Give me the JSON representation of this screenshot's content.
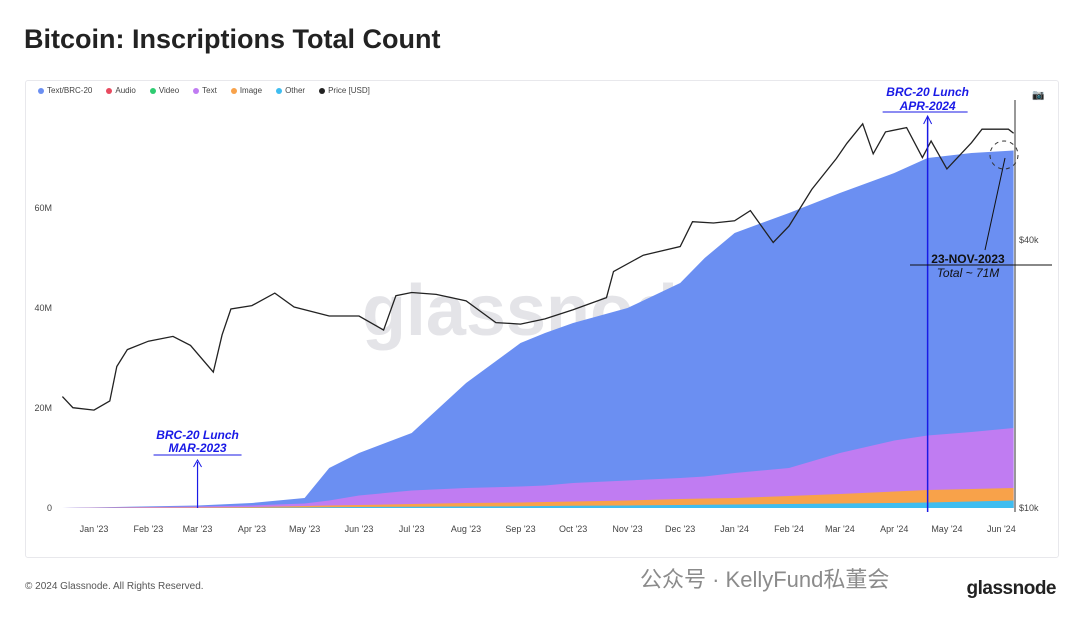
{
  "title": "Bitcoin: Inscriptions Total Count",
  "footer": "© 2024 Glassnode. All Rights Reserved.",
  "logo": "glassnode",
  "watermark_overlay": "公众号 · KellyFund私董会",
  "camera_icon": "camera-icon",
  "chart_data": {
    "type": "area",
    "title": "Bitcoin: Inscriptions Total Count",
    "stacked": true,
    "watermark": "glassnode",
    "legend_placement": "top-left",
    "legend": [
      {
        "name": "Text/BRC-20",
        "color": "#6b8ff2"
      },
      {
        "name": "Audio",
        "color": "#e84a5f"
      },
      {
        "name": "Video",
        "color": "#2ecc71"
      },
      {
        "name": "Text",
        "color": "#c07cf2"
      },
      {
        "name": "Image",
        "color": "#f8a24a"
      },
      {
        "name": "Other",
        "color": "#3fbdf0"
      },
      {
        "name": "Price [USD]",
        "color": "#222222"
      }
    ],
    "x_ticks": [
      "Jan '23",
      "Feb '23",
      "Mar '23",
      "Apr '23",
      "May '23",
      "Jun '23",
      "Jul '23",
      "Aug '23",
      "Sep '23",
      "Oct '23",
      "Nov '23",
      "Dec '23",
      "Jan '24",
      "Feb '24",
      "Mar '24",
      "Apr '24",
      "May '24",
      "Jun '24"
    ],
    "y_left": {
      "ticks": [
        "0",
        "20M",
        "40M",
        "60M"
      ],
      "range": [
        0,
        80000000
      ]
    },
    "y_right": {
      "ticks": [
        "$10k",
        "$40k"
      ],
      "scale": "log",
      "range": [
        10000,
        100000
      ]
    },
    "dates": [
      "2022-12-14",
      "2023-03-01",
      "2023-04-01",
      "2023-05-01",
      "2023-05-15",
      "2023-06-01",
      "2023-07-01",
      "2023-08-01",
      "2023-09-01",
      "2023-09-15",
      "2023-10-01",
      "2023-11-01",
      "2023-12-01",
      "2023-12-15",
      "2024-01-01",
      "2024-02-01",
      "2024-03-01",
      "2024-04-01",
      "2024-04-20",
      "2024-05-15",
      "2024-06-08"
    ],
    "series": [
      {
        "name": "Other",
        "cumulative": [
          0,
          0,
          0.05,
          0.1,
          0.15,
          0.2,
          0.25,
          0.3,
          0.35,
          0.4,
          0.45,
          0.5,
          0.6,
          0.65,
          0.7,
          0.8,
          0.9,
          1.0,
          1.1,
          1.3,
          1.5
        ]
      },
      {
        "name": "Image",
        "cumulative": [
          0,
          0.1,
          0.2,
          0.4,
          0.5,
          0.6,
          0.8,
          1.0,
          1.1,
          1.2,
          1.3,
          1.5,
          1.8,
          1.9,
          2.0,
          2.4,
          2.8,
          3.3,
          3.6,
          3.8,
          4.0
        ]
      },
      {
        "name": "Text",
        "cumulative": [
          0,
          0.3,
          0.5,
          0.9,
          1.5,
          2.5,
          3.5,
          4.0,
          4.3,
          4.5,
          5.0,
          5.5,
          6.0,
          6.3,
          7.0,
          8.0,
          11.0,
          13.5,
          14.5,
          15.2,
          16.0
        ]
      },
      {
        "name": "Text/BRC-20",
        "cumulative": [
          0,
          0.5,
          1.0,
          2.0,
          8.0,
          11.0,
          15.0,
          25.0,
          33.0,
          35.0,
          37.0,
          40.0,
          45.0,
          50.0,
          55.0,
          59.0,
          63.0,
          67.0,
          70.0,
          71.0,
          71.5
        ]
      }
    ],
    "units": "millions",
    "price": {
      "dates": [
        "2022-12-14",
        "2022-12-20",
        "2023-01-01",
        "2023-01-10",
        "2023-01-14",
        "2023-01-20",
        "2023-02-01",
        "2023-02-15",
        "2023-02-25",
        "2023-03-10",
        "2023-03-15",
        "2023-03-20",
        "2023-04-01",
        "2023-04-14",
        "2023-04-25",
        "2023-05-15",
        "2023-06-01",
        "2023-06-15",
        "2023-06-22",
        "2023-07-01",
        "2023-07-15",
        "2023-08-01",
        "2023-08-18",
        "2023-09-01",
        "2023-09-15",
        "2023-10-01",
        "2023-10-20",
        "2023-10-24",
        "2023-11-10",
        "2023-12-01",
        "2023-12-08",
        "2023-12-20",
        "2024-01-01",
        "2024-01-10",
        "2024-01-23",
        "2024-02-01",
        "2024-02-14",
        "2024-02-28",
        "2024-03-05",
        "2024-03-14",
        "2024-03-20",
        "2024-03-27",
        "2024-04-08",
        "2024-04-17",
        "2024-04-22",
        "2024-05-01",
        "2024-05-15",
        "2024-05-21",
        "2024-06-05",
        "2024-06-08"
      ],
      "values": [
        17800,
        16800,
        16600,
        17400,
        20800,
        22700,
        23700,
        24300,
        23200,
        20200,
        24500,
        28000,
        28500,
        30400,
        28300,
        27000,
        27000,
        25100,
        30000,
        30500,
        30200,
        29200,
        26100,
        25900,
        26600,
        27900,
        29700,
        34000,
        37000,
        38700,
        44000,
        43700,
        44200,
        46600,
        39500,
        43000,
        52000,
        61000,
        66000,
        73000,
        62500,
        70000,
        71600,
        61300,
        66800,
        57800,
        66200,
        71000,
        71000,
        69500
      ]
    },
    "annotations": [
      {
        "date": "2023-03-01",
        "lines": [
          "BRC-20 Lunch",
          "MAR-2023"
        ],
        "color": "#1a1ae6"
      },
      {
        "date": "2024-04-20",
        "lines": [
          "BRC-20 Lunch",
          "APR-2024"
        ],
        "color": "#1a1ae6"
      },
      {
        "lines": [
          "23-NOV-2023",
          "Total ~ 71M"
        ],
        "color": "#111111"
      }
    ]
  }
}
